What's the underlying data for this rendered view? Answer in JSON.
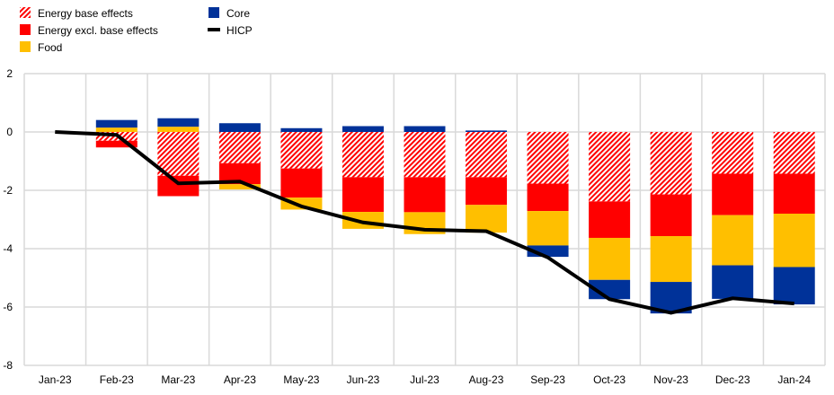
{
  "chart_data": {
    "type": "bar",
    "stacked": true,
    "categories": [
      "Jan-23",
      "Feb-23",
      "Mar-23",
      "Apr-23",
      "May-23",
      "Jun-23",
      "Jul-23",
      "Aug-23",
      "Sep-23",
      "Oct-23",
      "Nov-23",
      "Dec-23",
      "Jan-24"
    ],
    "ylim": [
      -8,
      2
    ],
    "yticks": [
      2,
      0,
      -2,
      -4,
      -6,
      -8
    ],
    "grid": true,
    "legend_position": "top-left",
    "series": [
      {
        "name": "Energy base effects",
        "kind": "bar",
        "color": "#FF0000",
        "pattern": "hatched",
        "values": [
          0,
          -0.3,
          -1.5,
          -1.07,
          -1.25,
          -1.55,
          -1.55,
          -1.55,
          -1.77,
          -2.38,
          -2.14,
          -1.43,
          -1.43
        ]
      },
      {
        "name": "Energy excl. base effects",
        "kind": "bar",
        "color": "#FF0000",
        "values": [
          0,
          -0.23,
          -0.7,
          -0.72,
          -1.0,
          -1.19,
          -1.2,
          -0.95,
          -0.94,
          -1.25,
          -1.43,
          -1.42,
          -1.37
        ]
      },
      {
        "name": "Food",
        "kind": "bar",
        "color": "#FFBF00",
        "values": [
          0,
          0.15,
          0.18,
          -0.18,
          -0.41,
          -0.58,
          -0.75,
          -0.95,
          -1.18,
          -1.44,
          -1.57,
          -1.72,
          -1.83
        ]
      },
      {
        "name": "Core",
        "kind": "bar",
        "color": "#003299",
        "values": [
          0,
          0.26,
          0.29,
          0.3,
          0.13,
          0.2,
          0.2,
          0.05,
          -0.39,
          -0.66,
          -1.08,
          -1.15,
          -1.28
        ]
      },
      {
        "name": "HICP",
        "kind": "line",
        "color": "#000000",
        "values": [
          0,
          -0.1,
          -1.76,
          -1.7,
          -2.55,
          -3.1,
          -3.35,
          -3.4,
          -4.3,
          -5.73,
          -6.2,
          -5.7,
          -5.88
        ]
      }
    ]
  }
}
